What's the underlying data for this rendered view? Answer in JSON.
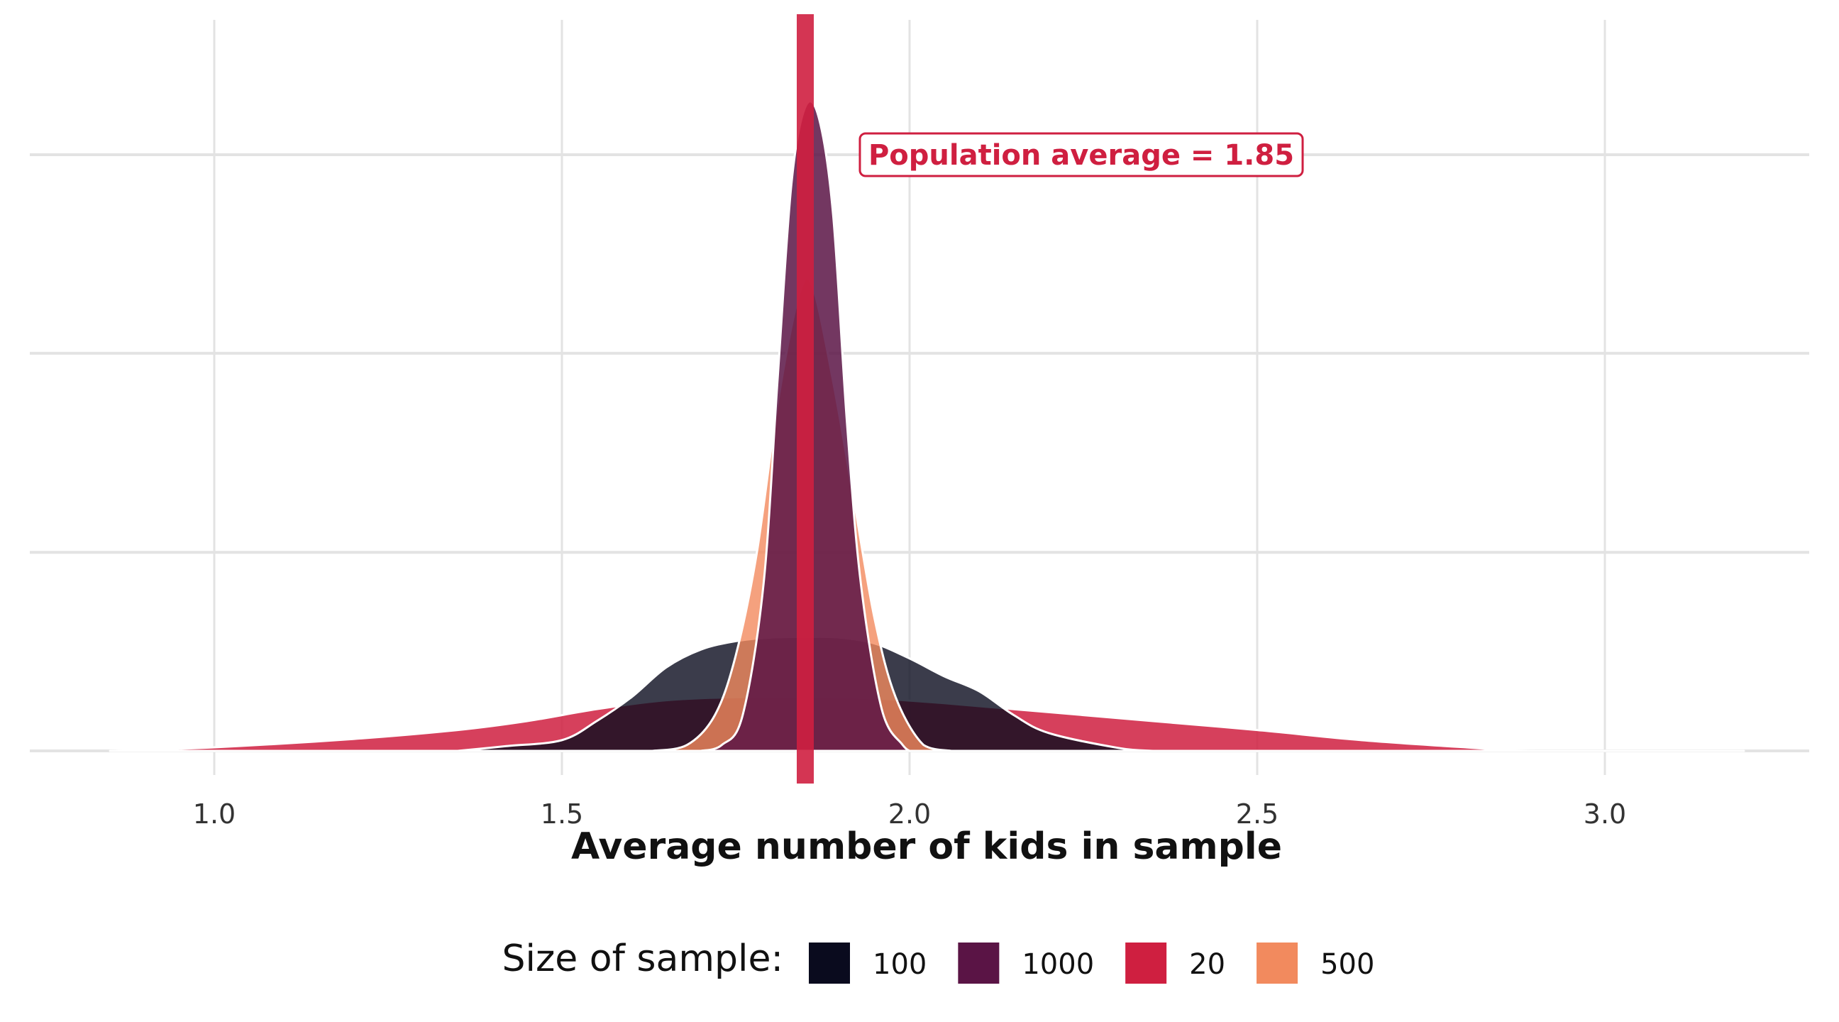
{
  "chart_data": {
    "type": "area",
    "xlabel": "Average number of kids in sample",
    "xlim": [
      0.74,
      3.3
    ],
    "ylim": [
      0,
      1.0
    ],
    "x_ticks": [
      1.0,
      1.5,
      2.0,
      2.5,
      3.0
    ],
    "x_tick_labels": [
      "1.0",
      "1.5",
      "2.0",
      "2.5",
      "3.0"
    ],
    "y_gridlines": [
      0,
      0.333,
      0.667,
      1.0
    ],
    "y_tick_labels_shown": false,
    "grid": true,
    "legend": {
      "title": "Size of sample:",
      "position": "bottom",
      "entries": [
        "100",
        "1000",
        "20",
        "500"
      ]
    },
    "series": [
      {
        "name": "20",
        "color": "#cf1f40",
        "opacity": 0.85,
        "x": [
          0.85,
          1.0,
          1.2,
          1.35,
          1.45,
          1.55,
          1.65,
          1.75,
          1.85,
          1.95,
          2.05,
          2.15,
          2.25,
          2.35,
          2.5,
          2.65,
          2.8,
          2.9,
          3.2
        ],
        "density": [
          0.0,
          0.006,
          0.02,
          0.035,
          0.05,
          0.07,
          0.085,
          0.09,
          0.09,
          0.088,
          0.08,
          0.07,
          0.06,
          0.05,
          0.035,
          0.018,
          0.006,
          0.0,
          0.0
        ]
      },
      {
        "name": "100",
        "color": "#0a0b1e",
        "opacity": 0.8,
        "x": [
          1.35,
          1.42,
          1.5,
          1.55,
          1.6,
          1.65,
          1.7,
          1.75,
          1.8,
          1.85,
          1.9,
          1.95,
          2.0,
          2.05,
          2.1,
          2.15,
          2.2,
          2.3,
          2.35
        ],
        "density": [
          0.0,
          0.008,
          0.018,
          0.05,
          0.09,
          0.14,
          0.17,
          0.184,
          0.19,
          0.191,
          0.19,
          0.18,
          0.155,
          0.125,
          0.1,
          0.06,
          0.03,
          0.005,
          0.0
        ]
      },
      {
        "name": "500",
        "color": "#f28a5e",
        "opacity": 0.8,
        "x": [
          1.63,
          1.68,
          1.72,
          1.75,
          1.78,
          1.81,
          1.84,
          1.86,
          1.89,
          1.92,
          1.95,
          1.98,
          2.02,
          2.06
        ],
        "density": [
          0.0,
          0.01,
          0.06,
          0.16,
          0.33,
          0.58,
          0.76,
          0.78,
          0.62,
          0.42,
          0.22,
          0.09,
          0.01,
          0.0
        ]
      },
      {
        "name": "1000",
        "color": "#5a1445",
        "opacity": 0.85,
        "x": [
          1.7,
          1.73,
          1.76,
          1.79,
          1.81,
          1.83,
          1.85,
          1.87,
          1.89,
          1.91,
          1.93,
          1.96,
          1.99,
          2.0
        ],
        "density": [
          0.0,
          0.01,
          0.06,
          0.28,
          0.62,
          0.95,
          1.08,
          1.06,
          0.9,
          0.55,
          0.28,
          0.07,
          0.01,
          0.0
        ]
      }
    ],
    "annotation": {
      "text": "Population average = 1.85",
      "x": 1.85,
      "color": "#cf1f40"
    }
  }
}
